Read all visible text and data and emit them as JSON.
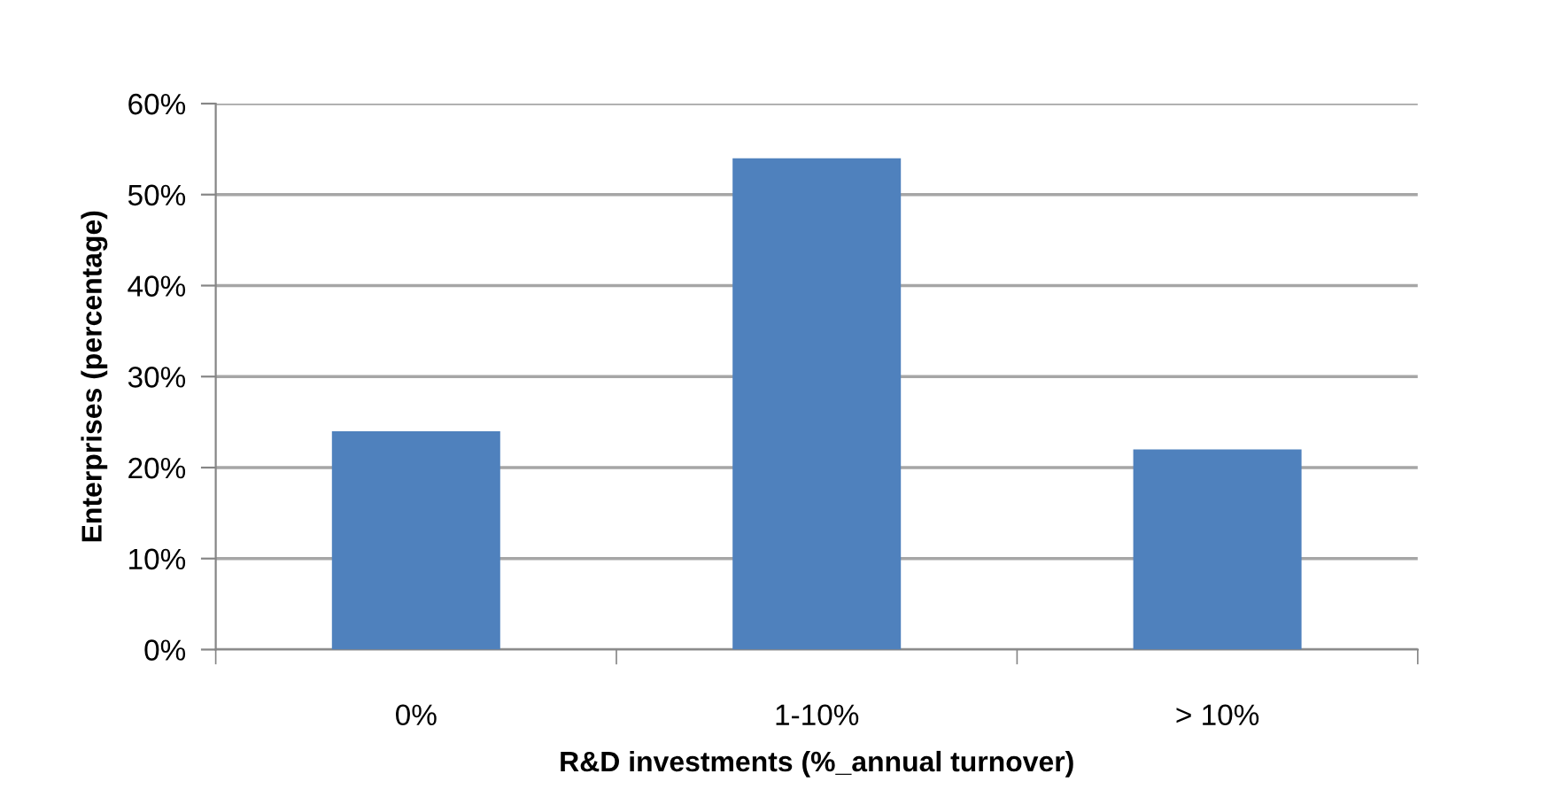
{
  "chart_data": {
    "type": "bar",
    "xlabel": "R&D investments (%_annual turnover)",
    "ylabel": "Enterprises (percentage)",
    "categories": [
      "0%",
      "1-10%",
      "> 10%"
    ],
    "values": [
      24,
      54,
      22
    ],
    "color": "#4f81bd",
    "ylim": [
      0,
      60
    ],
    "yticks": [
      {
        "value": 0,
        "label": "0%"
      },
      {
        "value": 10,
        "label": "10%"
      },
      {
        "value": 20,
        "label": "20%"
      },
      {
        "value": 30,
        "label": "30%"
      },
      {
        "value": 40,
        "label": "40%"
      },
      {
        "value": 50,
        "label": "50%"
      },
      {
        "value": 60,
        "label": "60%"
      }
    ],
    "grid": "y",
    "legend": false
  }
}
